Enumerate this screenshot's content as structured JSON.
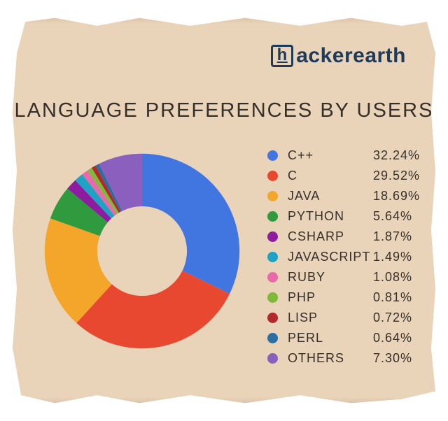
{
  "logo": {
    "text": "ackerearth",
    "box_letter": "h"
  },
  "title": "Language Preferences by Users",
  "chart": {
    "type": "donut",
    "hole_ratio": 0.46,
    "background_color": "#e9d3b9",
    "slices": [
      {
        "label": "C++",
        "value": 32.24,
        "color": "#4176e0",
        "display": "32.24%"
      },
      {
        "label": "C",
        "value": 29.52,
        "color": "#e8482f",
        "display": "29.52%"
      },
      {
        "label": "Java",
        "value": 18.69,
        "color": "#f4a62a",
        "display": "18.69%"
      },
      {
        "label": "Python",
        "value": 5.64,
        "color": "#2f9b3e",
        "display": "5.64%"
      },
      {
        "label": "CSharp",
        "value": 1.87,
        "color": "#8e1ca0",
        "display": "1.87%"
      },
      {
        "label": "Javascript",
        "value": 1.49,
        "color": "#1fa3c4",
        "display": "1.49%"
      },
      {
        "label": "Ruby",
        "value": 1.08,
        "color": "#e86aa8",
        "display": "1.08%"
      },
      {
        "label": "PHP",
        "value": 0.81,
        "color": "#7fb93a",
        "display": "0.81%"
      },
      {
        "label": "Lisp",
        "value": 0.72,
        "color": "#b32828",
        "display": "0.72%"
      },
      {
        "label": "Perl",
        "value": 0.64,
        "color": "#2a6fa3",
        "display": "0.64%"
      },
      {
        "label": "Others",
        "value": 7.3,
        "color": "#8a5fbe",
        "display": "7.30%"
      }
    ],
    "legend_fontsize": 18,
    "title_fontsize": 29,
    "text_color": "#36302a"
  },
  "colors": {
    "paper_bg": "#e9d3b9",
    "logo": "#1f3b5a"
  }
}
